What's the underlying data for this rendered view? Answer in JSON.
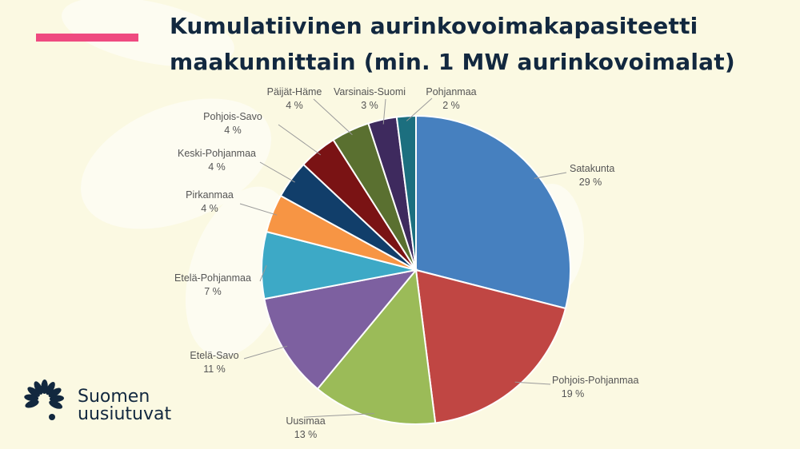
{
  "title": "Kumulatiivinen aurinkovoimakapasiteetti maakunnittain (min. 1 MW aurinkovoimalat)",
  "brand": {
    "line1": "Suomen",
    "line2": "uusiutuvat",
    "logo_icon": "leaf-burst-icon"
  },
  "colors": {
    "background": "#fbf9e2",
    "accent": "#ef4a80",
    "title": "#12283f"
  },
  "chart_data": {
    "type": "pie",
    "title": "Kumulatiivinen aurinkovoimakapasiteetti maakunnittain (min. 1 MW aurinkovoimalat)",
    "legend": "none",
    "slices": [
      {
        "label": "Satakunta",
        "value": 29,
        "value_label": "29 %",
        "color": "#4680bf"
      },
      {
        "label": "Pohjois-Pohjanmaa",
        "value": 19,
        "value_label": "19 %",
        "color": "#c04643"
      },
      {
        "label": "Uusimaa",
        "value": 13,
        "value_label": "13 %",
        "color": "#9bbb58"
      },
      {
        "label": "Etelä-Savo",
        "value": 11,
        "value_label": "11 %",
        "color": "#7d60a0"
      },
      {
        "label": "Etelä-Pohjanmaa",
        "value": 7,
        "value_label": "7 %",
        "color": "#3da9c6"
      },
      {
        "label": "Pirkanmaa",
        "value": 4,
        "value_label": "4 %",
        "color": "#f79544"
      },
      {
        "label": "Keski-Pohjanmaa",
        "value": 4,
        "value_label": "4 %",
        "color": "#113e6a"
      },
      {
        "label": "Pohjois-Savo",
        "value": 4,
        "value_label": "4 %",
        "color": "#7a1314"
      },
      {
        "label": "Päijät-Häme",
        "value": 4,
        "value_label": "4 %",
        "color": "#5a7030"
      },
      {
        "label": "Varsinais-Suomi",
        "value": 3,
        "value_label": "3 %",
        "color": "#3e2a5e"
      },
      {
        "label": "Pohjanmaa",
        "value": 2,
        "value_label": "2 %",
        "color": "#1c6f7f"
      }
    ]
  }
}
